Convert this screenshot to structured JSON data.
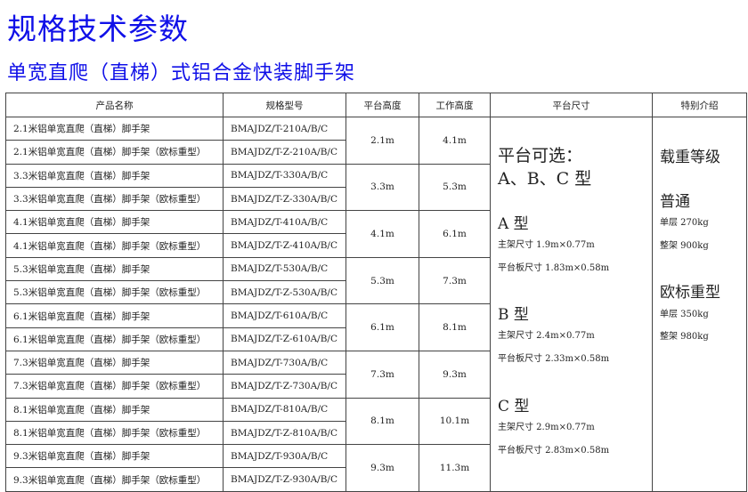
{
  "title": "规格技术参数",
  "subtitle": "单宽直爬（直梯）式铝合金快装脚手架",
  "headers": [
    "产品名称",
    "规格型号",
    "平台高度",
    "工作高度",
    "平台尺寸",
    "特别介绍"
  ],
  "groups": [
    {
      "rows": [
        {
          "name": "2.1米铝单宽直爬（直梯）脚手架",
          "model": "BMAJDZ/T-210A/B/C"
        },
        {
          "name": "2.1米铝单宽直爬（直梯）脚手架（欧标重型）",
          "model": "BMAJDZ/T-Z-210A/B/C"
        }
      ],
      "platform_height": "2.1m",
      "work_height": "4.1m"
    },
    {
      "rows": [
        {
          "name": "3.3米铝单宽直爬（直梯）脚手架",
          "model": "BMAJDZ/T-330A/B/C"
        },
        {
          "name": "3.3米铝单宽直爬（直梯）脚手架（欧标重型）",
          "model": "BMAJDZ/T-Z-330A/B/C"
        }
      ],
      "platform_height": "3.3m",
      "work_height": "5.3m"
    },
    {
      "rows": [
        {
          "name": "4.1米铝单宽直爬（直梯）脚手架",
          "model": "BMAJDZ/T-410A/B/C"
        },
        {
          "name": "4.1米铝单宽直爬（直梯）脚手架（欧标重型）",
          "model": "BMAJDZ/T-Z-410A/B/C"
        }
      ],
      "platform_height": "4.1m",
      "work_height": "6.1m"
    },
    {
      "rows": [
        {
          "name": "5.3米铝单宽直爬（直梯）脚手架",
          "model": "BMAJDZ/T-530A/B/C"
        },
        {
          "name": "5.3米铝单宽直爬（直梯）脚手架（欧标重型）",
          "model": "BMAJDZ/T-Z-530A/B/C"
        }
      ],
      "platform_height": "5.3m",
      "work_height": "7.3m"
    },
    {
      "rows": [
        {
          "name": "6.1米铝单宽直爬（直梯）脚手架",
          "model": "BMAJDZ/T-610A/B/C"
        },
        {
          "name": "6.1米铝单宽直爬（直梯）脚手架（欧标重型）",
          "model": "BMAJDZ/T-Z-610A/B/C"
        }
      ],
      "platform_height": "6.1m",
      "work_height": "8.1m"
    },
    {
      "rows": [
        {
          "name": "7.3米铝单宽直爬（直梯）脚手架",
          "model": "BMAJDZ/T-730A/B/C"
        },
        {
          "name": "7.3米铝单宽直爬（直梯）脚手架（欧标重型）",
          "model": "BMAJDZ/T-Z-730A/B/C"
        }
      ],
      "platform_height": "7.3m",
      "work_height": "9.3m"
    },
    {
      "rows": [
        {
          "name": "8.1米铝单宽直爬（直梯）脚手架",
          "model": "BMAJDZ/T-810A/B/C"
        },
        {
          "name": "8.1米铝单宽直爬（直梯）脚手架（欧标重型）",
          "model": "BMAJDZ/T-Z-810A/B/C"
        }
      ],
      "platform_height": "8.1m",
      "work_height": "10.1m"
    },
    {
      "rows": [
        {
          "name": "9.3米铝单宽直爬（直梯）脚手架",
          "model": "BMAJDZ/T-930A/B/C"
        },
        {
          "name": "9.3米铝单宽直爬（直梯）脚手架（欧标重型）",
          "model": "BMAJDZ/T-Z-930A/B/C"
        }
      ],
      "platform_height": "9.3m",
      "work_height": "11.3m"
    }
  ],
  "platform_size": {
    "intro1": "平台可选：",
    "intro2": "A、B、C 型",
    "types": [
      {
        "label": "A 型",
        "main": "主架尺寸 1.9m×0.77m",
        "board": "平台板尺寸 1.83m×0.58m"
      },
      {
        "label": "B 型",
        "main": "主架尺寸 2.4m×0.77m",
        "board": "平台板尺寸 2.33m×0.58m"
      },
      {
        "label": "C 型",
        "main": "主架尺寸 2.9m×0.77m",
        "board": "平台板尺寸 2.83m×0.58m"
      }
    ]
  },
  "special": {
    "heading": "载重等级",
    "grades": [
      {
        "label": "普通",
        "single": "单层 270kg",
        "whole": "整架 900kg"
      },
      {
        "label": "欧标重型",
        "single": "单层 350kg",
        "whole": "整架 980kg"
      }
    ]
  },
  "colors": {
    "title": "#1010e8",
    "border": "#444444"
  }
}
